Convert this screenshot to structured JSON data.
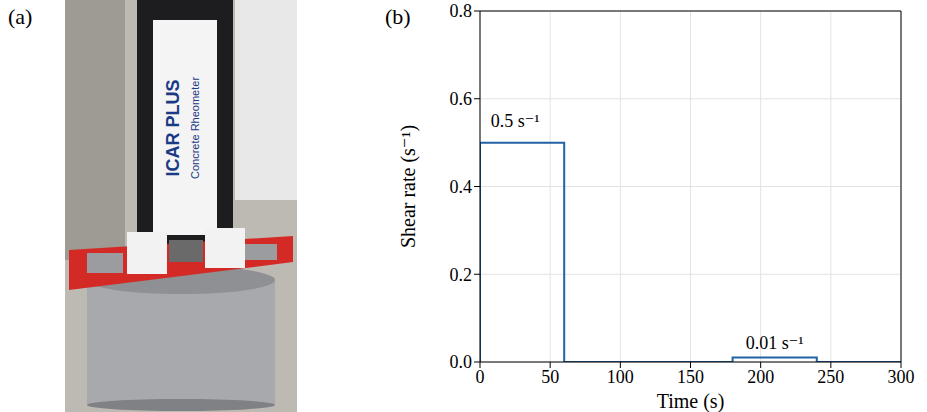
{
  "panel_a": {
    "label": "(a)",
    "photo_text": [
      "ICAR PLUS",
      "Concrete Rheometer"
    ]
  },
  "chart_data": {
    "type": "line",
    "panel_label": "(b)",
    "x_label": "Time (s)",
    "y_label": "Shear rate (s⁻¹)",
    "x": [
      0,
      0,
      60,
      60,
      180,
      180,
      240,
      240,
      300
    ],
    "values": [
      0,
      0.5,
      0.5,
      0,
      0,
      0.01,
      0.01,
      0,
      0
    ],
    "color": "#2262a6",
    "xlim": [
      0,
      300
    ],
    "xticks": [
      0,
      50,
      100,
      150,
      200,
      250,
      300
    ],
    "ylim": [
      0,
      0.8
    ],
    "yticks": [
      {
        "value": 0,
        "label": "0.0"
      },
      0.2,
      0.4,
      0.6,
      0.8
    ],
    "grid": true,
    "annotations": [
      {
        "text": "0.5 s⁻¹",
        "x": 25,
        "y": 0.55
      },
      {
        "text": "0.01 s⁻¹",
        "x": 210,
        "y": 0.045
      }
    ]
  }
}
